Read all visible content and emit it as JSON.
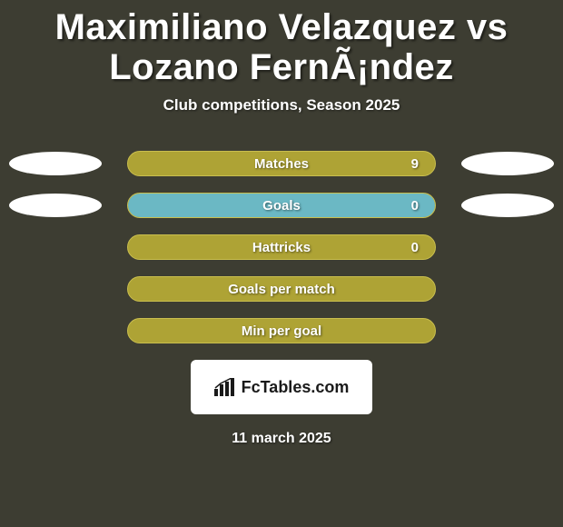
{
  "title": "Maximiliano Velazquez vs Lozano FernÃ¡ndez",
  "subtitle": "Club competitions, Season 2025",
  "stats": [
    {
      "label": "Matches",
      "right_value": "9",
      "show_left_oval": true,
      "show_right_oval": true,
      "show_value": true,
      "fill_pct": 0,
      "fill_color": "#6bb8c4"
    },
    {
      "label": "Goals",
      "right_value": "0",
      "show_left_oval": true,
      "show_right_oval": true,
      "show_value": true,
      "fill_pct": 100,
      "fill_color": "#6bb8c4"
    },
    {
      "label": "Hattricks",
      "right_value": "0",
      "show_left_oval": false,
      "show_right_oval": false,
      "show_value": true,
      "fill_pct": 0,
      "fill_color": "#6bb8c4"
    },
    {
      "label": "Goals per match",
      "right_value": "",
      "show_left_oval": false,
      "show_right_oval": false,
      "show_value": false,
      "fill_pct": 0,
      "fill_color": "#6bb8c4"
    },
    {
      "label": "Min per goal",
      "right_value": "",
      "show_left_oval": false,
      "show_right_oval": false,
      "show_value": false,
      "fill_pct": 0,
      "fill_color": "#6bb8c4"
    }
  ],
  "logo_text": "FcTables.com",
  "date": "11 march 2025",
  "colors": {
    "background": "#3d3d32",
    "bar_fill": "#aea335",
    "bar_border": "#c9be4e",
    "oval": "#ffffff",
    "text": "#ffffff",
    "logo_bg": "#ffffff",
    "logo_text": "#1a1a1a"
  }
}
